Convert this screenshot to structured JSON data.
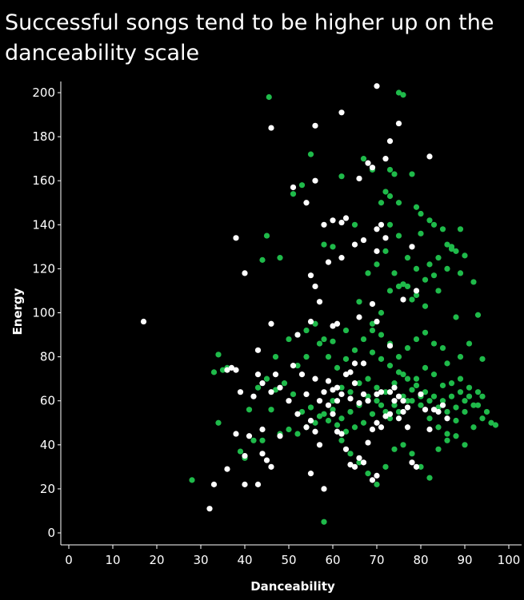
{
  "chart_data": {
    "type": "scatter",
    "title": "Successful songs tend to be higher up on the danceability scale",
    "xlabel": "Danceability",
    "ylabel": "Energy",
    "xlim": [
      0,
      100
    ],
    "ylim": [
      0,
      200
    ],
    "xticks": [
      "0",
      "10",
      "20",
      "30",
      "40",
      "50",
      "60",
      "70",
      "80",
      "90",
      "100"
    ],
    "yticks": [
      "0",
      "20",
      "40",
      "60",
      "80",
      "100",
      "120",
      "140",
      "160",
      "180",
      "200"
    ],
    "grid": false,
    "legend": "none",
    "colors": {
      "successful": "#1fba4a",
      "other": "#ffffff",
      "background": "#000000",
      "axis": "#ffffff"
    },
    "series": [
      {
        "color": "#1fba4a",
        "points": [
          [
            45.5,
            198
          ],
          [
            75,
            200
          ],
          [
            76,
            199
          ],
          [
            73,
            165
          ],
          [
            74,
            163
          ],
          [
            78,
            163
          ],
          [
            72,
            155
          ],
          [
            73,
            153
          ],
          [
            75,
            150
          ],
          [
            79,
            148
          ],
          [
            80,
            145
          ],
          [
            82,
            142
          ],
          [
            89,
            138
          ],
          [
            86,
            131
          ],
          [
            87,
            130
          ],
          [
            88,
            128
          ],
          [
            90,
            126
          ],
          [
            84,
            125
          ],
          [
            82,
            122
          ],
          [
            86,
            120
          ],
          [
            89,
            118
          ],
          [
            92,
            114
          ],
          [
            83,
            117
          ],
          [
            77,
            112
          ],
          [
            79,
            108
          ],
          [
            84,
            110
          ],
          [
            81,
            103
          ],
          [
            88,
            98
          ],
          [
            93,
            99
          ],
          [
            91,
            86
          ],
          [
            86,
            77
          ],
          [
            94,
            79
          ],
          [
            89,
            80
          ],
          [
            97,
            49
          ],
          [
            96,
            50
          ],
          [
            94,
            52
          ],
          [
            92,
            48
          ],
          [
            90,
            55
          ],
          [
            88,
            51
          ],
          [
            86,
            45
          ],
          [
            84,
            48
          ],
          [
            82,
            52
          ],
          [
            80,
            58
          ],
          [
            78,
            60
          ],
          [
            76,
            62
          ],
          [
            74,
            58
          ],
          [
            72,
            55
          ],
          [
            70,
            60
          ],
          [
            68,
            62
          ],
          [
            66,
            58
          ],
          [
            64,
            55
          ],
          [
            62,
            52
          ],
          [
            60,
            56
          ],
          [
            58,
            54
          ],
          [
            56,
            50
          ],
          [
            54,
            48
          ],
          [
            52,
            45
          ],
          [
            50,
            47
          ],
          [
            48,
            45
          ],
          [
            46,
            56
          ],
          [
            60,
            60
          ],
          [
            62,
            66
          ],
          [
            64,
            64
          ],
          [
            66,
            68
          ],
          [
            68,
            70
          ],
          [
            70,
            66
          ],
          [
            72,
            64
          ],
          [
            74,
            68
          ],
          [
            76,
            72
          ],
          [
            78,
            65
          ],
          [
            80,
            62
          ],
          [
            82,
            60
          ],
          [
            84,
            57
          ],
          [
            86,
            55
          ],
          [
            88,
            57
          ],
          [
            90,
            60
          ],
          [
            92,
            58
          ],
          [
            94,
            62
          ],
          [
            85,
            67
          ],
          [
            83,
            72
          ],
          [
            81,
            75
          ],
          [
            79,
            70
          ],
          [
            77,
            60
          ],
          [
            75,
            55
          ],
          [
            73,
            52
          ],
          [
            71,
            58
          ],
          [
            69,
            54
          ],
          [
            67,
            50
          ],
          [
            65,
            48
          ],
          [
            63,
            46
          ],
          [
            61,
            49
          ],
          [
            59,
            51
          ],
          [
            57,
            53
          ],
          [
            55,
            57
          ],
          [
            53,
            55
          ],
          [
            51,
            63
          ],
          [
            49,
            68
          ],
          [
            47,
            65
          ],
          [
            45,
            70
          ],
          [
            43,
            66
          ],
          [
            41,
            56
          ],
          [
            39,
            37
          ],
          [
            42,
            42
          ],
          [
            44,
            42
          ],
          [
            40,
            34
          ],
          [
            28,
            24
          ],
          [
            34,
            81
          ],
          [
            35,
            74
          ],
          [
            33,
            73
          ],
          [
            36,
            75
          ],
          [
            34,
            50
          ],
          [
            47,
            80
          ],
          [
            50,
            88
          ],
          [
            52,
            90
          ],
          [
            54,
            92
          ],
          [
            57,
            86
          ],
          [
            59,
            80
          ],
          [
            61,
            75
          ],
          [
            63,
            79
          ],
          [
            65,
            83
          ],
          [
            67,
            88
          ],
          [
            69,
            92
          ],
          [
            71,
            90
          ],
          [
            73,
            86
          ],
          [
            75,
            80
          ],
          [
            77,
            84
          ],
          [
            79,
            88
          ],
          [
            81,
            91
          ],
          [
            83,
            86
          ],
          [
            85,
            84
          ],
          [
            87,
            68
          ],
          [
            89,
            70
          ],
          [
            91,
            66
          ],
          [
            93,
            64
          ],
          [
            60,
            130
          ],
          [
            62,
            162
          ],
          [
            58,
            131
          ],
          [
            65,
            140
          ],
          [
            67,
            170
          ],
          [
            69,
            165
          ],
          [
            71,
            150
          ],
          [
            73,
            140
          ],
          [
            75,
            135
          ],
          [
            77,
            125
          ],
          [
            79,
            120
          ],
          [
            81,
            115
          ],
          [
            69,
            95
          ],
          [
            71,
            100
          ],
          [
            73,
            110
          ],
          [
            75,
            112
          ],
          [
            62,
            42
          ],
          [
            64,
            36
          ],
          [
            66,
            32
          ],
          [
            68,
            27
          ],
          [
            70,
            22
          ],
          [
            72,
            30
          ],
          [
            74,
            38
          ],
          [
            76,
            40
          ],
          [
            78,
            36
          ],
          [
            80,
            30
          ],
          [
            82,
            25
          ],
          [
            84,
            38
          ],
          [
            86,
            42
          ],
          [
            88,
            44
          ],
          [
            90,
            40
          ],
          [
            58,
            5
          ],
          [
            63,
            92
          ],
          [
            66,
            105
          ],
          [
            68,
            118
          ],
          [
            70,
            122
          ],
          [
            72,
            128
          ],
          [
            74,
            118
          ],
          [
            76,
            113
          ],
          [
            78,
            106
          ],
          [
            53,
            158
          ],
          [
            55,
            172
          ],
          [
            51,
            154
          ],
          [
            44,
            124
          ],
          [
            45,
            135
          ],
          [
            48,
            125
          ],
          [
            80,
            136
          ],
          [
            83,
            140
          ],
          [
            85,
            138
          ],
          [
            87,
            129
          ],
          [
            69,
            82
          ],
          [
            71,
            79
          ],
          [
            73,
            76
          ],
          [
            75,
            73
          ],
          [
            77,
            70
          ],
          [
            79,
            67
          ],
          [
            81,
            64
          ],
          [
            83,
            62
          ],
          [
            85,
            60
          ],
          [
            87,
            62
          ],
          [
            89,
            64
          ],
          [
            91,
            62
          ],
          [
            93,
            58
          ],
          [
            95,
            55
          ],
          [
            60,
            87
          ],
          [
            56,
            95
          ],
          [
            58,
            88
          ],
          [
            54,
            80
          ],
          [
            52,
            76
          ]
        ]
      },
      {
        "color": "#ffffff",
        "points": [
          [
            17,
            96
          ],
          [
            38,
            134
          ],
          [
            40,
            118
          ],
          [
            46,
            184
          ],
          [
            56,
            185
          ],
          [
            62,
            191
          ],
          [
            70,
            203
          ],
          [
            75,
            186
          ],
          [
            73,
            178
          ],
          [
            68,
            168
          ],
          [
            69,
            166
          ],
          [
            66,
            161
          ],
          [
            72,
            170
          ],
          [
            82,
            171
          ],
          [
            56,
            160
          ],
          [
            51,
            157
          ],
          [
            54,
            150
          ],
          [
            63,
            143
          ],
          [
            60,
            142
          ],
          [
            62,
            141
          ],
          [
            58,
            140
          ],
          [
            70,
            138
          ],
          [
            71,
            140
          ],
          [
            72,
            134
          ],
          [
            70,
            128
          ],
          [
            67,
            133
          ],
          [
            65,
            131
          ],
          [
            62,
            125
          ],
          [
            59,
            123
          ],
          [
            55,
            117
          ],
          [
            56,
            112
          ],
          [
            57,
            105
          ],
          [
            78,
            130
          ],
          [
            76,
            106
          ],
          [
            79,
            110
          ],
          [
            69,
            104
          ],
          [
            70,
            96
          ],
          [
            66,
            98
          ],
          [
            60,
            94
          ],
          [
            61,
            95
          ],
          [
            55,
            96
          ],
          [
            52,
            90
          ],
          [
            46,
            95
          ],
          [
            43,
            83
          ],
          [
            38,
            74
          ],
          [
            37,
            75
          ],
          [
            33,
            22
          ],
          [
            36,
            29
          ],
          [
            40,
            22
          ],
          [
            40,
            35
          ],
          [
            43,
            22
          ],
          [
            44,
            36
          ],
          [
            45,
            33
          ],
          [
            46,
            30
          ],
          [
            32,
            11
          ],
          [
            36,
            74
          ],
          [
            39,
            64
          ],
          [
            42,
            62
          ],
          [
            43,
            72
          ],
          [
            44,
            68
          ],
          [
            46,
            64
          ],
          [
            47,
            72
          ],
          [
            48,
            66
          ],
          [
            50,
            60
          ],
          [
            51,
            76
          ],
          [
            52,
            54
          ],
          [
            54,
            48
          ],
          [
            55,
            51
          ],
          [
            56,
            46
          ],
          [
            57,
            40
          ],
          [
            58,
            64
          ],
          [
            59,
            58
          ],
          [
            60,
            54
          ],
          [
            61,
            46
          ],
          [
            62,
            45
          ],
          [
            63,
            38
          ],
          [
            64,
            31
          ],
          [
            65,
            30
          ],
          [
            66,
            34
          ],
          [
            67,
            32
          ],
          [
            68,
            41
          ],
          [
            69,
            47
          ],
          [
            70,
            50
          ],
          [
            71,
            48
          ],
          [
            72,
            53
          ],
          [
            73,
            54
          ],
          [
            74,
            60
          ],
          [
            75,
            52
          ],
          [
            76,
            55
          ],
          [
            77,
            48
          ],
          [
            78,
            32
          ],
          [
            79,
            30
          ],
          [
            80,
            63
          ],
          [
            81,
            56
          ],
          [
            82,
            47
          ],
          [
            83,
            56
          ],
          [
            84,
            55
          ],
          [
            85,
            58
          ],
          [
            86,
            52
          ],
          [
            55,
            27
          ],
          [
            58,
            20
          ],
          [
            61,
            60
          ],
          [
            62,
            63
          ],
          [
            64,
            61
          ],
          [
            66,
            59
          ],
          [
            67,
            63
          ],
          [
            68,
            60
          ],
          [
            70,
            63
          ],
          [
            71,
            64
          ],
          [
            73,
            64
          ],
          [
            74,
            66
          ],
          [
            75,
            62
          ],
          [
            76,
            60
          ],
          [
            77,
            57
          ],
          [
            73,
            85
          ],
          [
            65,
            77
          ],
          [
            63,
            72
          ],
          [
            60,
            65
          ],
          [
            57,
            60
          ],
          [
            53,
            72
          ],
          [
            48,
            44
          ],
          [
            44,
            47
          ],
          [
            41,
            44
          ],
          [
            38,
            45
          ],
          [
            70,
            26
          ],
          [
            69,
            24
          ],
          [
            61,
            66
          ],
          [
            59,
            69
          ],
          [
            56,
            70
          ],
          [
            67,
            77
          ],
          [
            65,
            68
          ],
          [
            64,
            73
          ],
          [
            54,
            63
          ]
        ]
      }
    ]
  }
}
